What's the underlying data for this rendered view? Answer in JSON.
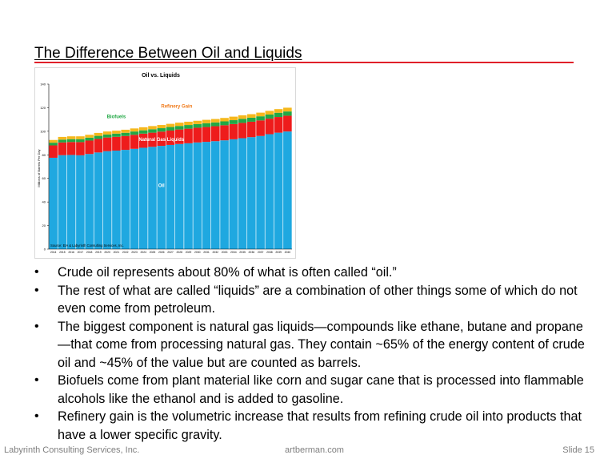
{
  "slide": {
    "title": "The Difference Between Oil and Liquids",
    "accent_color": "#e0202a"
  },
  "chart_data": {
    "type": "bar",
    "stacked": true,
    "title": "Oil vs. Liquids",
    "ylabel": "Millions of Barrels Per Day",
    "xlabel": "",
    "ylim": [
      0,
      140
    ],
    "yticks": [
      0,
      20,
      40,
      60,
      80,
      100,
      120,
      140
    ],
    "categories": [
      "2014",
      "2015",
      "2016",
      "2017",
      "2018",
      "2019",
      "2020",
      "2021",
      "2022",
      "2023",
      "2024",
      "2025",
      "2026",
      "2027",
      "2028",
      "2029",
      "2030",
      "2031",
      "2032",
      "2033",
      "2034",
      "2035",
      "2036",
      "2037",
      "2038",
      "2039",
      "2040"
    ],
    "series": [
      {
        "name": "Oil",
        "color": "#1fa8e0",
        "values": [
          77.5,
          79.7,
          79.9,
          79.6,
          80.7,
          82.0,
          83.1,
          83.6,
          84.2,
          85.1,
          86.0,
          86.8,
          87.6,
          88.4,
          89.2,
          89.8,
          90.5,
          91.0,
          91.6,
          92.3,
          93.2,
          94.1,
          95.0,
          96.0,
          97.5,
          98.8,
          99.8
        ]
      },
      {
        "name": "Natural Gas Liquids",
        "color": "#ee1c1c",
        "values": [
          10.5,
          10.8,
          11.0,
          11.2,
          11.4,
          11.5,
          11.6,
          11.7,
          11.8,
          11.9,
          12.0,
          12.0,
          12.1,
          12.2,
          12.3,
          12.4,
          12.5,
          12.6,
          12.7,
          12.8,
          12.9,
          13.0,
          13.1,
          13.2,
          13.2,
          13.3,
          13.4
        ]
      },
      {
        "name": "Biofuels",
        "color": "#22a845",
        "values": [
          2.3,
          2.4,
          2.4,
          2.5,
          2.5,
          2.6,
          2.6,
          2.7,
          2.7,
          2.8,
          2.8,
          2.9,
          2.9,
          3.0,
          3.0,
          3.1,
          3.1,
          3.2,
          3.2,
          3.3,
          3.3,
          3.4,
          3.4,
          3.5,
          3.5,
          3.6,
          3.6
        ]
      },
      {
        "name": "Refinery Gain",
        "color": "#f5b81c",
        "values": [
          2.3,
          2.3,
          2.4,
          2.4,
          2.4,
          2.5,
          2.5,
          2.5,
          2.6,
          2.6,
          2.6,
          2.7,
          2.7,
          2.7,
          2.8,
          2.8,
          2.8,
          2.9,
          2.9,
          2.9,
          3.0,
          3.0,
          3.0,
          3.1,
          3.1,
          3.1,
          3.2
        ]
      }
    ],
    "annotations": [
      {
        "text": "Oil",
        "color": "#ffffff"
      },
      {
        "text": "Natural Gas Liquids",
        "color": "#ffffff"
      },
      {
        "text": "Biofuels",
        "color": "#22a845"
      },
      {
        "text": "Refinery Gain",
        "color": "#f07a1a"
      }
    ],
    "source_note": "Source: EIA & Labyrinth Consulting Services, Inc.",
    "grid": false,
    "legend": "none"
  },
  "bullets": [
    "Crude oil represents about 80% of what is often called “oil.”",
    "The rest of what are called “liquids” are a combination of other things some of which do not even come from petroleum.",
    "The biggest component is natural gas liquids—compounds like ethane, butane and propane—that come from processing natural gas. They contain ~65% of the energy content of crude oil and ~45% of the value but are counted as barrels.",
    "Biofuels come from plant material like corn and sugar cane that is processed into flammable alcohols like the ethanol and is added to gasoline.",
    "Refinery gain is the volumetric increase that results from refining crude oil into products that have a lower specific gravity."
  ],
  "bullet_symbol": "•",
  "footer": {
    "left": "Labyrinth Consulting Services, Inc.",
    "center": "artberman.com",
    "right": "Slide 15"
  }
}
